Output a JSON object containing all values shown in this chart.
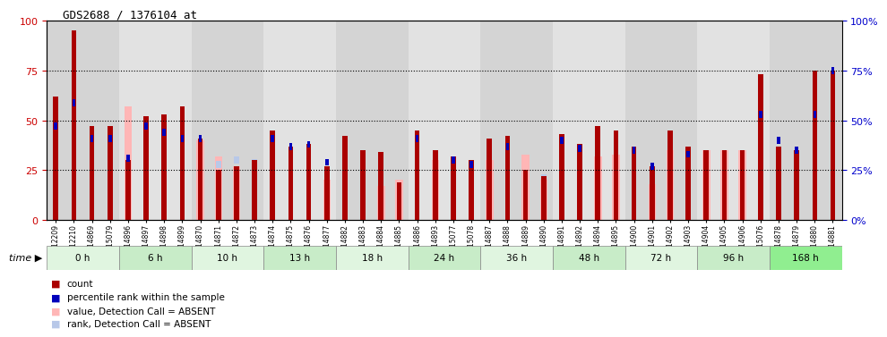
{
  "title": "GDS2688 / 1376104_at",
  "samples": [
    "GSM112209",
    "GSM112210",
    "GSM114869",
    "GSM115079",
    "GSM114896",
    "GSM114897",
    "GSM114898",
    "GSM114899",
    "GSM114870",
    "GSM114871",
    "GSM114872",
    "GSM114873",
    "GSM114874",
    "GSM114875",
    "GSM114876",
    "GSM114877",
    "GSM114882",
    "GSM114883",
    "GSM114884",
    "GSM114885",
    "GSM114886",
    "GSM114893",
    "GSM115077",
    "GSM115078",
    "GSM114887",
    "GSM114888",
    "GSM114889",
    "GSM114890",
    "GSM114891",
    "GSM114892",
    "GSM114894",
    "GSM114895",
    "GSM114900",
    "GSM114901",
    "GSM114902",
    "GSM114903",
    "GSM114904",
    "GSM114905",
    "GSM114906",
    "GSM115076",
    "GSM114878",
    "GSM114879",
    "GSM114880",
    "GSM114881"
  ],
  "count": [
    62,
    95,
    47,
    47,
    30,
    52,
    53,
    57,
    41,
    25,
    27,
    30,
    45,
    37,
    38,
    27,
    42,
    35,
    34,
    19,
    45,
    35,
    32,
    30,
    41,
    42,
    25,
    22,
    43,
    38,
    47,
    45,
    37,
    27,
    45,
    37,
    35,
    35,
    35,
    73,
    37,
    35,
    75,
    75
  ],
  "rank": [
    47,
    59,
    41,
    41,
    31,
    47,
    44,
    41,
    41,
    0,
    0,
    0,
    41,
    37,
    38,
    29,
    0,
    0,
    0,
    0,
    41,
    0,
    30,
    28,
    0,
    37,
    0,
    0,
    40,
    36,
    0,
    0,
    35,
    27,
    0,
    33,
    0,
    0,
    0,
    53,
    40,
    35,
    53,
    75
  ],
  "absent_value": [
    0,
    0,
    0,
    0,
    57,
    0,
    0,
    0,
    40,
    32,
    27,
    0,
    0,
    0,
    0,
    20,
    0,
    0,
    17,
    20,
    0,
    30,
    0,
    0,
    30,
    0,
    33,
    20,
    0,
    0,
    32,
    33,
    0,
    18,
    35,
    0,
    35,
    35,
    35,
    0,
    0,
    0,
    0,
    0
  ],
  "absent_rank": [
    0,
    0,
    0,
    0,
    0,
    0,
    0,
    0,
    0,
    28,
    30,
    29,
    0,
    0,
    0,
    0,
    27,
    28,
    0,
    0,
    16,
    0,
    28,
    27,
    0,
    0,
    0,
    21,
    0,
    0,
    0,
    0,
    0,
    0,
    0,
    0,
    0,
    0,
    0,
    0,
    0,
    0,
    0,
    0
  ],
  "time_groups": [
    {
      "label": "0 h",
      "start": 0,
      "end": 4
    },
    {
      "label": "6 h",
      "start": 4,
      "end": 8
    },
    {
      "label": "10 h",
      "start": 8,
      "end": 12
    },
    {
      "label": "13 h",
      "start": 12,
      "end": 16
    },
    {
      "label": "18 h",
      "start": 16,
      "end": 20
    },
    {
      "label": "24 h",
      "start": 20,
      "end": 24
    },
    {
      "label": "36 h",
      "start": 24,
      "end": 28
    },
    {
      "label": "48 h",
      "start": 28,
      "end": 32
    },
    {
      "label": "72 h",
      "start": 32,
      "end": 36
    },
    {
      "label": "96 h",
      "start": 36,
      "end": 40
    },
    {
      "label": "168 h",
      "start": 40,
      "end": 44
    }
  ],
  "time_colors": [
    "#E0F5E0",
    "#C8ECC8",
    "#E0F5E0",
    "#C8ECC8",
    "#E0F5E0",
    "#C8ECC8",
    "#E0F5E0",
    "#C8ECC8",
    "#E0F5E0",
    "#C8ECC8",
    "#90EE90"
  ],
  "band_colors": [
    "#D4D4D4",
    "#E2E2E2"
  ],
  "colors": {
    "count": "#AA0000",
    "rank": "#0000BB",
    "absent_value": "#FFB6B6",
    "absent_rank": "#B8C8E8",
    "left_axis": "#CC0000",
    "right_axis": "#0000CC"
  }
}
